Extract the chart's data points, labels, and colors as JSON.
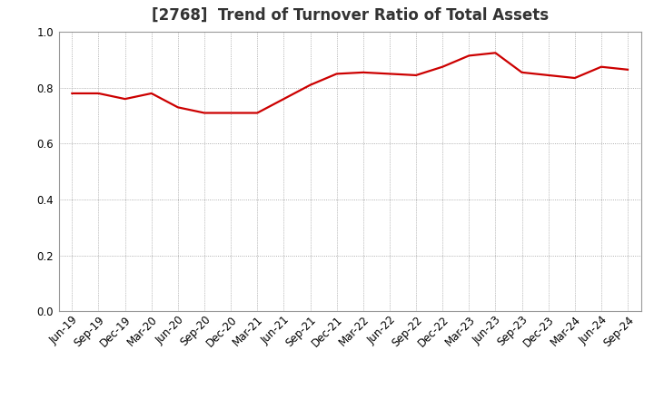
{
  "title": "[2768]  Trend of Turnover Ratio of Total Assets",
  "x_labels": [
    "Jun-19",
    "Sep-19",
    "Dec-19",
    "Mar-20",
    "Jun-20",
    "Sep-20",
    "Dec-20",
    "Mar-21",
    "Jun-21",
    "Sep-21",
    "Dec-21",
    "Mar-22",
    "Jun-22",
    "Sep-22",
    "Dec-22",
    "Mar-23",
    "Jun-23",
    "Sep-23",
    "Dec-23",
    "Mar-24",
    "Jun-24",
    "Sep-24"
  ],
  "y_values": [
    0.78,
    0.78,
    0.76,
    0.78,
    0.73,
    0.71,
    0.71,
    0.71,
    0.76,
    0.81,
    0.85,
    0.855,
    0.85,
    0.845,
    0.875,
    0.915,
    0.925,
    0.855,
    0.845,
    0.835,
    0.875,
    0.865
  ],
  "line_color": "#cc0000",
  "line_width": 1.6,
  "ylim": [
    0.0,
    1.0
  ],
  "yticks": [
    0.0,
    0.2,
    0.4,
    0.6,
    0.8,
    1.0
  ],
  "grid_color": "#999999",
  "bg_color": "#ffffff",
  "title_fontsize": 12,
  "tick_fontsize": 8.5
}
